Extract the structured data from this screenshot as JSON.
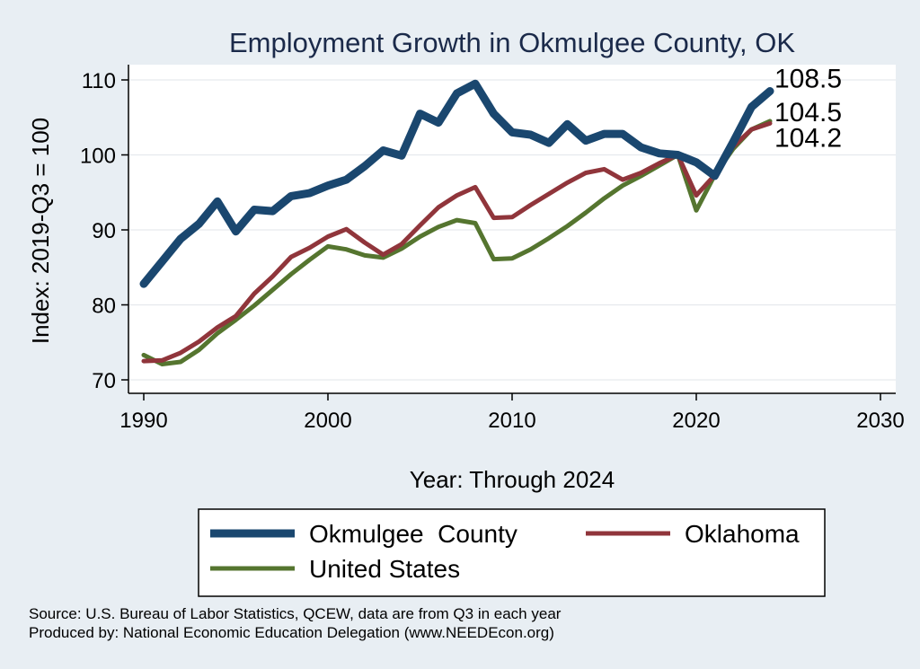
{
  "chart_data": {
    "type": "line",
    "title": "Employment Growth in Okmulgee County, OK",
    "xlabel": "Year: Through 2024",
    "ylabel": "Index: 2019-Q3 = 100",
    "xlim": [
      1990,
      2030
    ],
    "ylim": [
      70,
      110
    ],
    "xticks": [
      1990,
      2000,
      2010,
      2020,
      2030
    ],
    "yticks": [
      70,
      80,
      90,
      100,
      110
    ],
    "grid": true,
    "legend_position": "bottom",
    "series": [
      {
        "name": "Okmulgee  County",
        "color": "#1a476f",
        "x": [
          1990,
          1991,
          1992,
          1993,
          1994,
          1995,
          1996,
          1997,
          1998,
          1999,
          2000,
          2001,
          2002,
          2003,
          2004,
          2005,
          2006,
          2007,
          2008,
          2009,
          2010,
          2011,
          2012,
          2013,
          2014,
          2015,
          2016,
          2017,
          2018,
          2019,
          2020,
          2021,
          2022,
          2023,
          2024
        ],
        "values": [
          82.8,
          85.8,
          88.8,
          90.8,
          93.8,
          89.8,
          92.7,
          92.5,
          94.5,
          94.9,
          95.9,
          96.7,
          98.5,
          100.6,
          99.9,
          105.5,
          104.3,
          108.2,
          109.5,
          105.5,
          103.0,
          102.7,
          101.6,
          104.1,
          101.9,
          102.8,
          102.8,
          101.0,
          100.2,
          100.0,
          99.0,
          97.2,
          101.7,
          106.4,
          108.5
        ],
        "end_label": "108.5"
      },
      {
        "name": "Oklahoma",
        "color": "#90353b",
        "x": [
          1990,
          1991,
          1992,
          1993,
          1994,
          1995,
          1996,
          1997,
          1998,
          1999,
          2000,
          2001,
          2002,
          2003,
          2004,
          2005,
          2006,
          2007,
          2008,
          2009,
          2010,
          2011,
          2012,
          2013,
          2014,
          2015,
          2016,
          2017,
          2018,
          2019,
          2020,
          2021,
          2022,
          2023,
          2024
        ],
        "values": [
          72.5,
          72.6,
          73.6,
          75.1,
          77.0,
          78.5,
          81.5,
          83.8,
          86.4,
          87.6,
          89.1,
          90.1,
          88.3,
          86.7,
          88.1,
          90.6,
          93.0,
          94.6,
          95.7,
          91.6,
          91.7,
          93.3,
          94.8,
          96.3,
          97.6,
          98.1,
          96.7,
          97.6,
          98.9,
          100.0,
          94.6,
          97.3,
          101.1,
          103.4,
          104.2
        ],
        "end_label": "104.2"
      },
      {
        "name": "United States",
        "color": "#55752f",
        "x": [
          1990,
          1991,
          1992,
          1993,
          1994,
          1995,
          1996,
          1997,
          1998,
          1999,
          2000,
          2001,
          2002,
          2003,
          2004,
          2005,
          2006,
          2007,
          2008,
          2009,
          2010,
          2011,
          2012,
          2013,
          2014,
          2015,
          2016,
          2017,
          2018,
          2019,
          2020,
          2021,
          2022,
          2023,
          2024
        ],
        "values": [
          73.3,
          72.1,
          72.4,
          74.0,
          76.2,
          78.0,
          79.9,
          82.0,
          84.1,
          86.0,
          87.8,
          87.4,
          86.6,
          86.3,
          87.5,
          89.1,
          90.4,
          91.3,
          90.9,
          86.1,
          86.2,
          87.4,
          88.9,
          90.5,
          92.3,
          94.2,
          95.9,
          97.2,
          98.6,
          100.0,
          92.6,
          97.3,
          100.8,
          103.4,
          104.5
        ],
        "end_label": "104.5"
      }
    ],
    "source_lines": [
      "Source: U.S. Bureau of Labor Statistics, QCEW, data are from Q3 in each year",
      "Produced by: National Economic Education Delegation (www.NEEDEcon.org)"
    ]
  }
}
